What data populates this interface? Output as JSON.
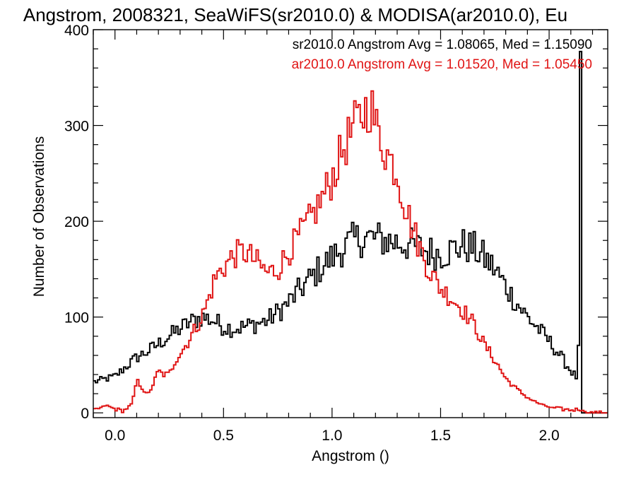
{
  "chart_data": {
    "type": "step-histogram",
    "title": "Angstrom, 2008321, SeaWiFS(sr2010.0) & MODISA(ar2010.0), Eu",
    "xlabel": "Angstrom ()",
    "ylabel": "Number of Observations",
    "xlim": [
      -0.1,
      2.27
    ],
    "ylim": [
      -5,
      400
    ],
    "xticks": [
      0.0,
      0.5,
      1.0,
      1.5,
      2.0
    ],
    "xtick_labels": [
      "0.0",
      "0.5",
      "1.0",
      "1.5",
      "2.0"
    ],
    "yticks": [
      0,
      100,
      200,
      300,
      400
    ],
    "ytick_labels": [
      "0",
      "100",
      "200",
      "300",
      "400"
    ],
    "legend_placement": "top-right",
    "colors": {
      "sr": "#000000",
      "ar": "#e01414",
      "axis": "#000000"
    },
    "annotations": [
      {
        "text": "sr2010.0 Angstrom Avg = 1.08065, Med = 1.15090",
        "color": "#000000"
      },
      {
        "text": "ar2010.0 Angstrom Avg = 1.01520, Med = 1.05450",
        "color": "#e01414"
      }
    ],
    "series": [
      {
        "name": "sr2010.0",
        "color": "#000000",
        "points": [
          [
            -0.1,
            32
          ],
          [
            0.0,
            38
          ],
          [
            0.05,
            48
          ],
          [
            0.1,
            58
          ],
          [
            0.15,
            64
          ],
          [
            0.2,
            72
          ],
          [
            0.25,
            80
          ],
          [
            0.3,
            88
          ],
          [
            0.35,
            95
          ],
          [
            0.4,
            100
          ],
          [
            0.45,
            97
          ],
          [
            0.5,
            90
          ],
          [
            0.55,
            88
          ],
          [
            0.6,
            90
          ],
          [
            0.65,
            93
          ],
          [
            0.7,
            96
          ],
          [
            0.75,
            105
          ],
          [
            0.8,
            115
          ],
          [
            0.85,
            128
          ],
          [
            0.9,
            140
          ],
          [
            0.95,
            152
          ],
          [
            1.0,
            162
          ],
          [
            1.05,
            172
          ],
          [
            1.1,
            180
          ],
          [
            1.15,
            183
          ],
          [
            1.2,
            182
          ],
          [
            1.25,
            180
          ],
          [
            1.3,
            178
          ],
          [
            1.35,
            176
          ],
          [
            1.4,
            172
          ],
          [
            1.45,
            168
          ],
          [
            1.5,
            166
          ],
          [
            1.55,
            170
          ],
          [
            1.6,
            175
          ],
          [
            1.65,
            172
          ],
          [
            1.7,
            162
          ],
          [
            1.75,
            150
          ],
          [
            1.8,
            132
          ],
          [
            1.85,
            115
          ],
          [
            1.9,
            100
          ],
          [
            1.95,
            88
          ],
          [
            2.0,
            75
          ],
          [
            2.05,
            60
          ],
          [
            2.1,
            44
          ],
          [
            2.13,
            36
          ],
          [
            2.14,
            92
          ],
          [
            2.145,
            360
          ],
          [
            2.15,
            140
          ],
          [
            2.155,
            0
          ],
          [
            2.27,
            0
          ]
        ]
      },
      {
        "name": "ar2010.0",
        "color": "#e01414",
        "points": [
          [
            -0.1,
            2
          ],
          [
            -0.04,
            8
          ],
          [
            0.0,
            4
          ],
          [
            0.04,
            2
          ],
          [
            0.08,
            10
          ],
          [
            0.1,
            34
          ],
          [
            0.12,
            28
          ],
          [
            0.15,
            18
          ],
          [
            0.18,
            32
          ],
          [
            0.2,
            44
          ],
          [
            0.22,
            40
          ],
          [
            0.25,
            40
          ],
          [
            0.28,
            56
          ],
          [
            0.32,
            68
          ],
          [
            0.36,
            84
          ],
          [
            0.4,
            100
          ],
          [
            0.43,
            118
          ],
          [
            0.46,
            140
          ],
          [
            0.5,
            152
          ],
          [
            0.55,
            165
          ],
          [
            0.6,
            168
          ],
          [
            0.65,
            158
          ],
          [
            0.7,
            146
          ],
          [
            0.75,
            150
          ],
          [
            0.8,
            168
          ],
          [
            0.85,
            185
          ],
          [
            0.9,
            202
          ],
          [
            0.95,
            222
          ],
          [
            1.0,
            245
          ],
          [
            1.05,
            275
          ],
          [
            1.1,
            298
          ],
          [
            1.15,
            315
          ],
          [
            1.18,
            322
          ],
          [
            1.2,
            300
          ],
          [
            1.25,
            272
          ],
          [
            1.3,
            252
          ],
          [
            1.33,
            222
          ],
          [
            1.36,
            200
          ],
          [
            1.4,
            175
          ],
          [
            1.45,
            148
          ],
          [
            1.5,
            130
          ],
          [
            1.55,
            120
          ],
          [
            1.6,
            108
          ],
          [
            1.65,
            94
          ],
          [
            1.7,
            72
          ],
          [
            1.75,
            55
          ],
          [
            1.8,
            36
          ],
          [
            1.85,
            25
          ],
          [
            1.9,
            16
          ],
          [
            1.95,
            10
          ],
          [
            2.0,
            6
          ],
          [
            2.05,
            4
          ],
          [
            2.1,
            3
          ],
          [
            2.155,
            4
          ],
          [
            2.16,
            0
          ],
          [
            2.27,
            0
          ]
        ]
      }
    ]
  }
}
